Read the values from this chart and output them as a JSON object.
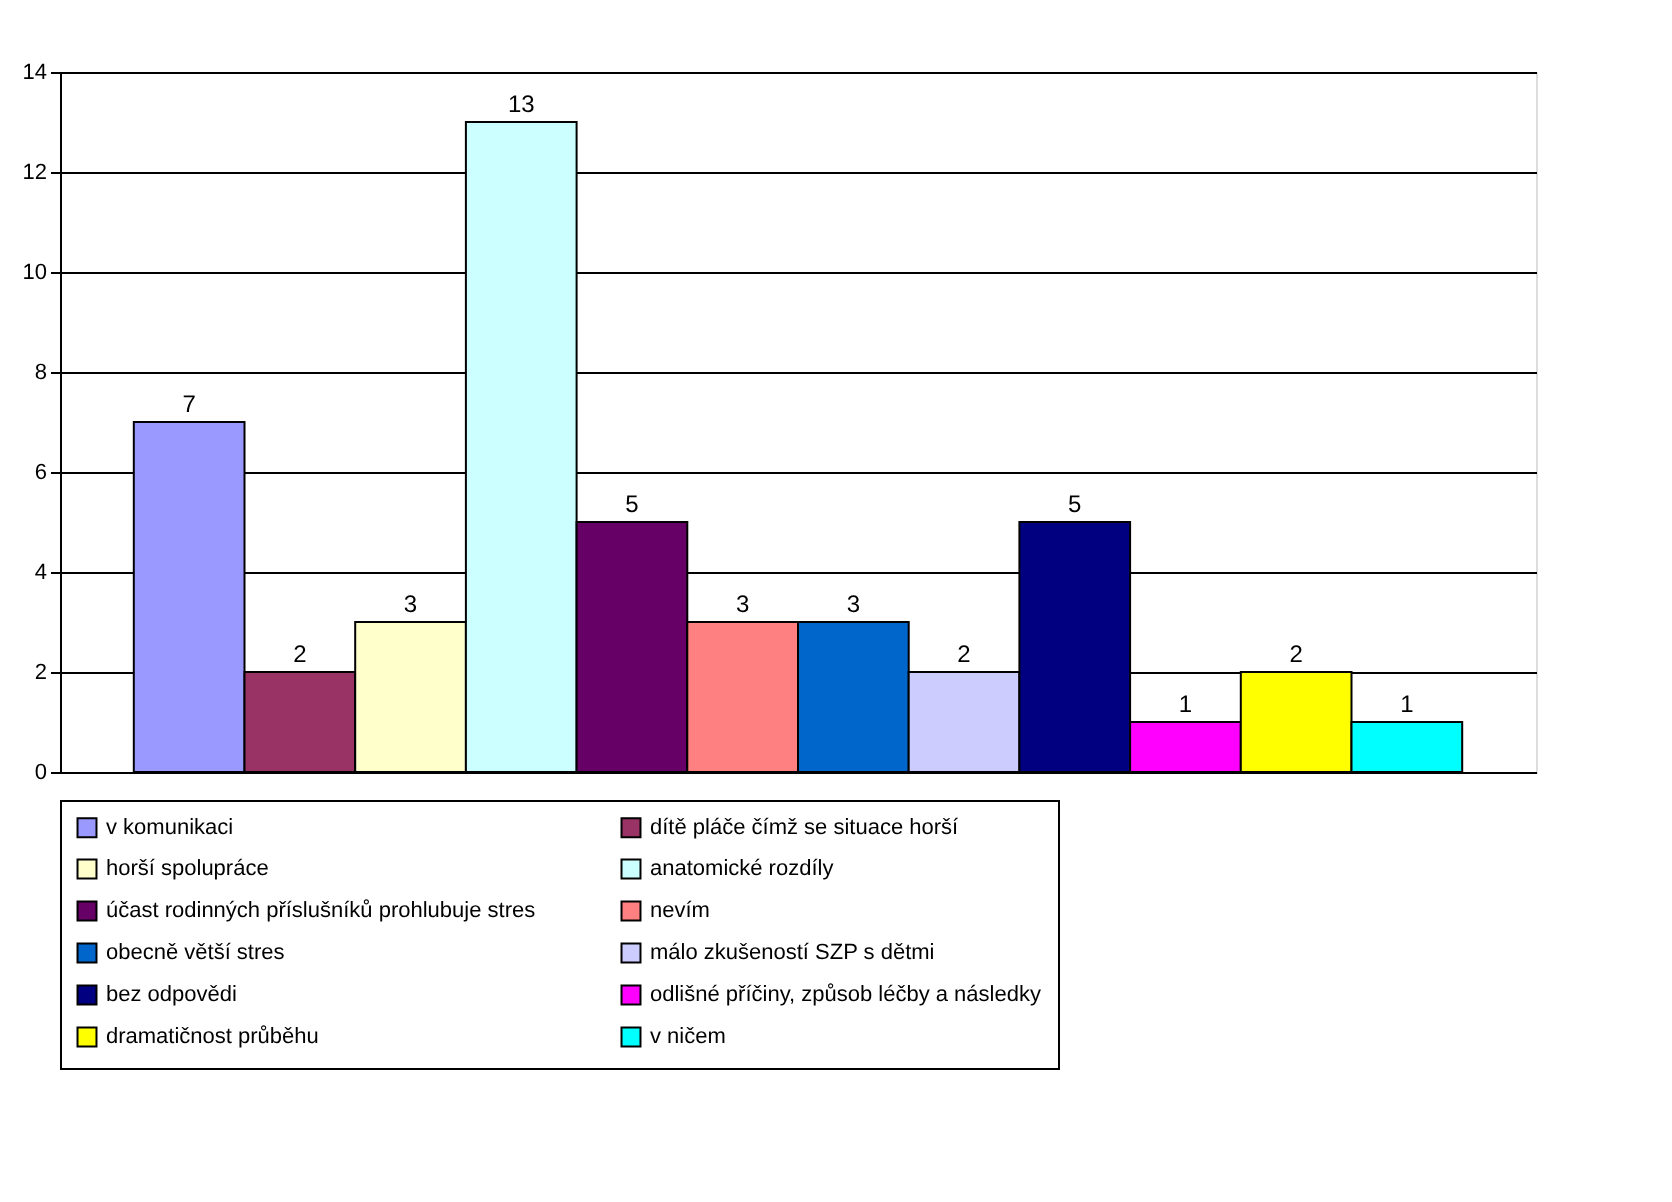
{
  "chart_data": {
    "type": "bar",
    "categories": [
      null
    ],
    "series": [
      {
        "name": "v komunikaci",
        "color": "#9999ff",
        "values": [
          7
        ]
      },
      {
        "name": "dítě pláče čímž se situace horší",
        "color": "#993366",
        "values": [
          2
        ]
      },
      {
        "name": "horší spolupráce",
        "color": "#ffffcc",
        "values": [
          3
        ]
      },
      {
        "name": "anatomické rozdíly",
        "color": "#ccffff",
        "values": [
          13
        ]
      },
      {
        "name": "účast rodinných příslušníků prohlubuje stres",
        "color": "#660066",
        "values": [
          5
        ]
      },
      {
        "name": "nevím",
        "color": "#ff8080",
        "values": [
          3
        ]
      },
      {
        "name": "obecně větší stres",
        "color": "#0066cc",
        "values": [
          3
        ]
      },
      {
        "name": "málo zkušeností SZP s dětmi",
        "color": "#ccccff",
        "values": [
          2
        ]
      },
      {
        "name": "bez odpovědi",
        "color": "#000080",
        "values": [
          5
        ]
      },
      {
        "name": "odlišné příčiny, způsob léčby a následky",
        "color": "#ff00ff",
        "values": [
          1
        ]
      },
      {
        "name": "dramatičnost průběhu",
        "color": "#ffff00",
        "values": [
          2
        ]
      },
      {
        "name": "v ničem",
        "color": "#00ffff",
        "values": [
          1
        ]
      }
    ],
    "ylim": [
      0,
      14
    ],
    "yticks": [
      0,
      2,
      4,
      6,
      8,
      10,
      12,
      14
    ],
    "grid": true,
    "legend": "bottom",
    "data_labels": true
  }
}
